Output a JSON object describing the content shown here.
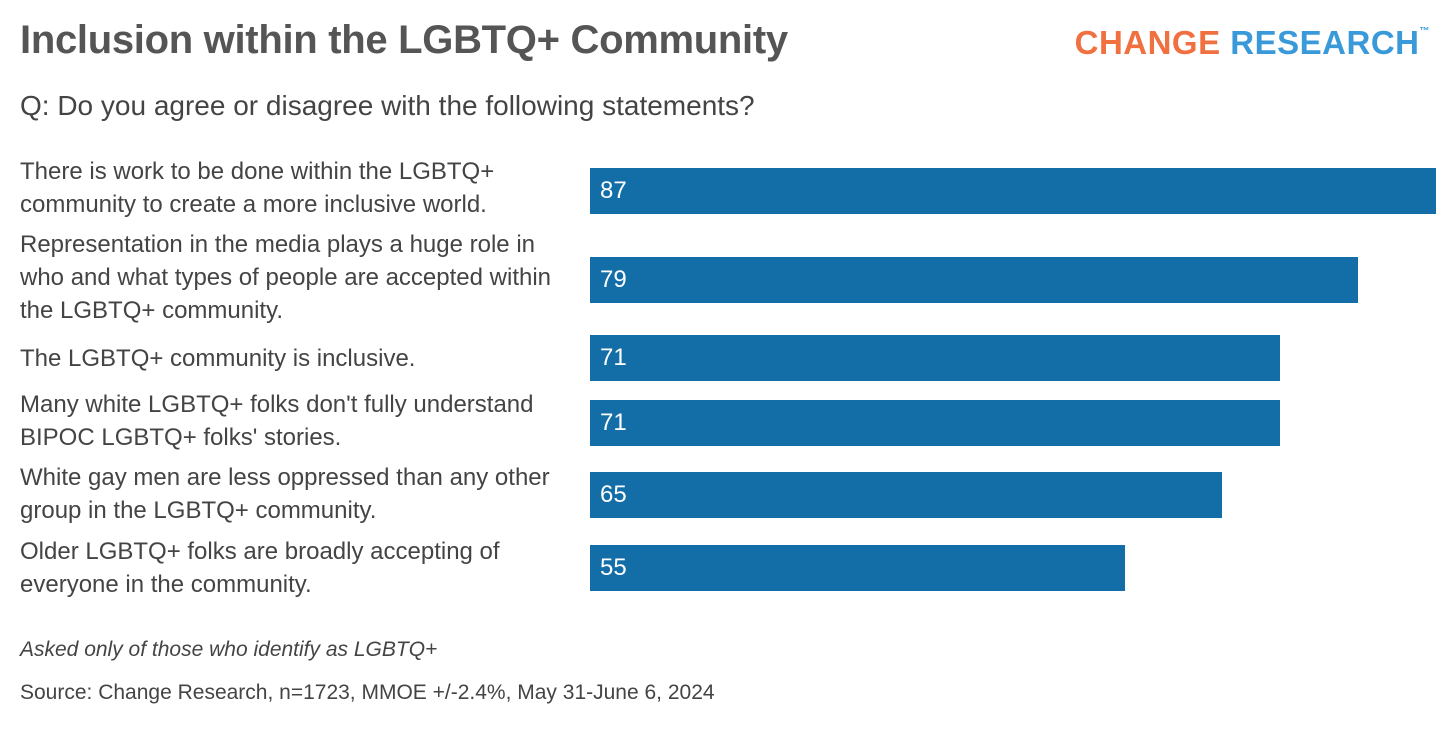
{
  "header": {
    "title": "Inclusion within the LGBTQ+ Community",
    "subtitle": "Q: Do you agree or disagree with the following statements?",
    "logo_word1": "CHANGE",
    "logo_word2": "RESEARCH",
    "logo_mark": "™"
  },
  "chart_data": {
    "type": "bar",
    "orientation": "horizontal",
    "title": "Inclusion within the LGBTQ+ Community",
    "categories": [
      "There is work to be done within the LGBTQ+ community to create a more inclusive world.",
      "Representation in the media plays a huge role in who and what types of people are accepted within the LGBTQ+ community.",
      "The LGBTQ+ community is inclusive.",
      "Many white LGBTQ+ folks don't fully understand BIPOC LGBTQ+ folks' stories.",
      "White gay men are less oppressed than any other group in the LGBTQ+ community.",
      "Older LGBTQ+ folks are broadly accepting of everyone in the community."
    ],
    "values": [
      87,
      79,
      71,
      71,
      65,
      55
    ],
    "xlim": [
      0,
      87
    ],
    "bar_color": "#136ea8",
    "grid": false
  },
  "footer": {
    "note": "Asked only of those who identify as LGBTQ+",
    "source": "Source: Change Research, n=1723, MMOE +/-2.4%, May 31-June 6, 2024"
  }
}
